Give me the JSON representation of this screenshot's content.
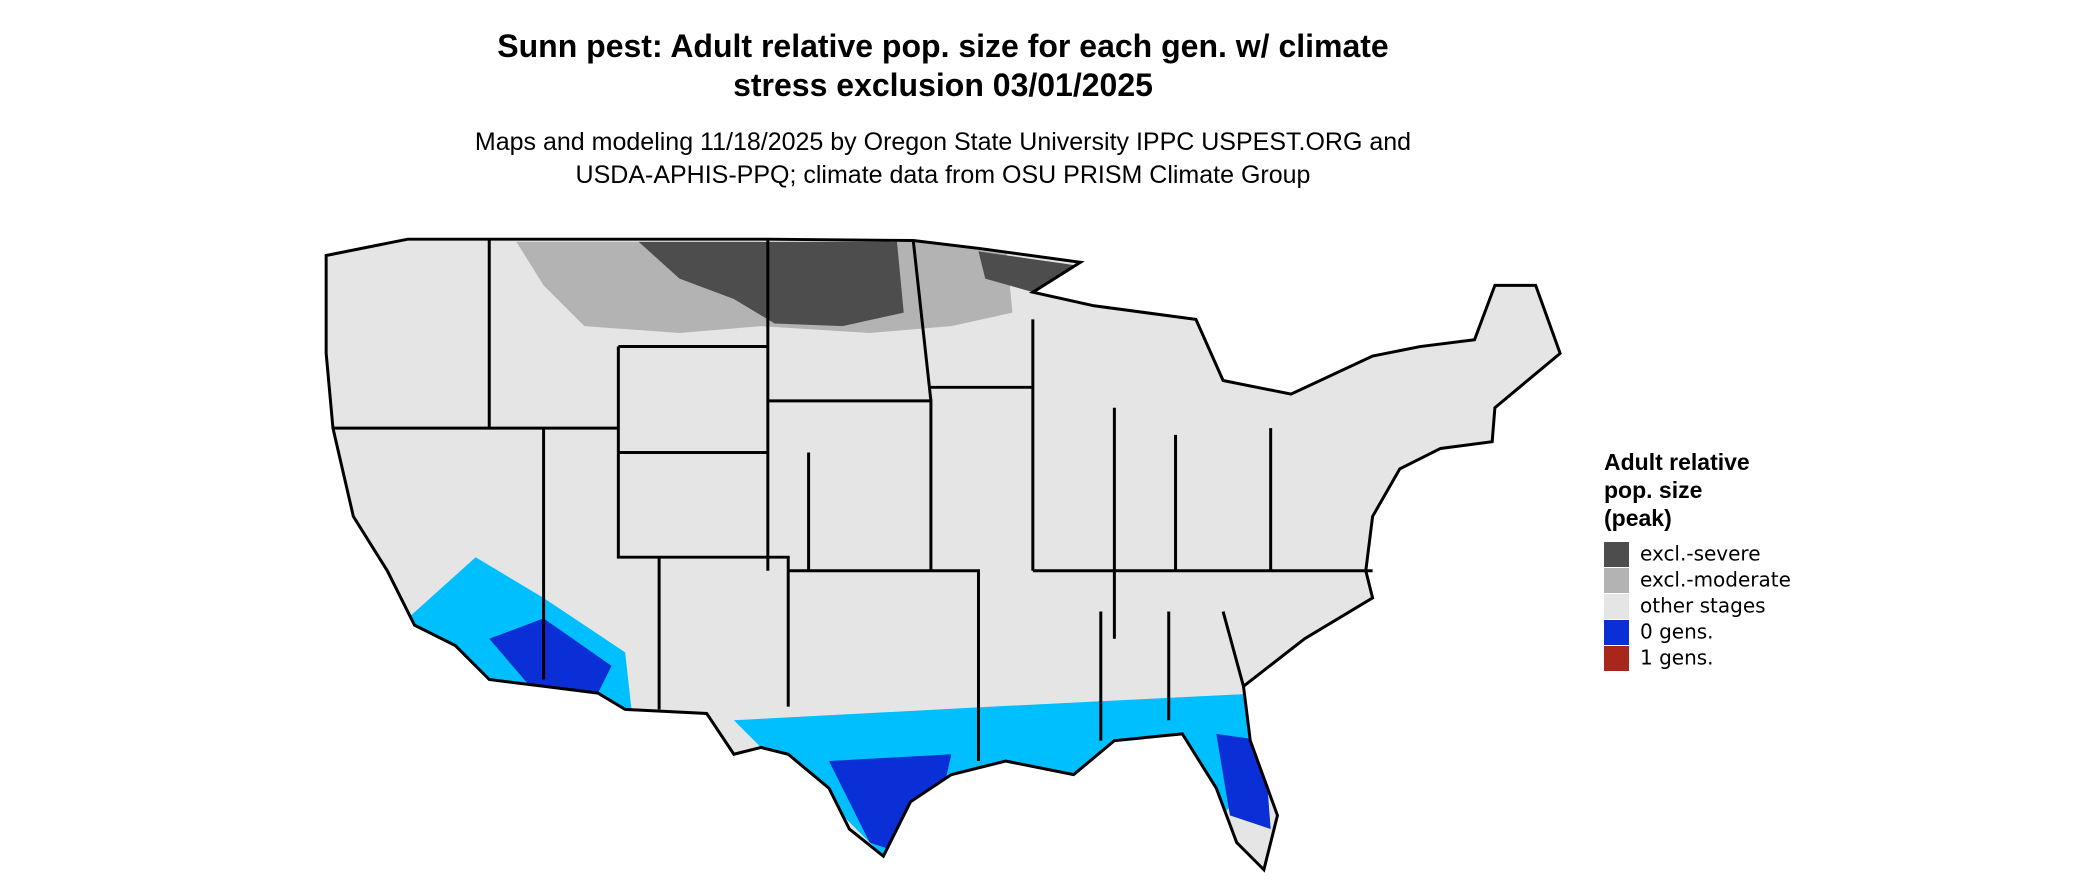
{
  "header": {
    "title": [
      "Sunn pest: Adult relative pop. size for each gen. w/ climate",
      "stress exclusion 03/01/2025"
    ],
    "subtitle": [
      "Maps and modeling 11/18/2025 by Oregon State University IPPC USPEST.ORG and",
      "USDA-APHIS-PPQ; climate data from OSU PRISM Climate Group"
    ]
  },
  "legend": {
    "title": [
      "Adult relative",
      "pop. size",
      "(peak)"
    ],
    "items": [
      {
        "label": "excl.-severe",
        "color": "#4d4d4d"
      },
      {
        "label": "excl.-moderate",
        "color": "#b3b3b3"
      },
      {
        "label": "other stages",
        "color": "#e5e5e5"
      },
      {
        "label": "0 gens.",
        "color": "#0a2fd6"
      },
      {
        "label": "1 gens.",
        "color": "#a9261b"
      }
    ]
  }
}
